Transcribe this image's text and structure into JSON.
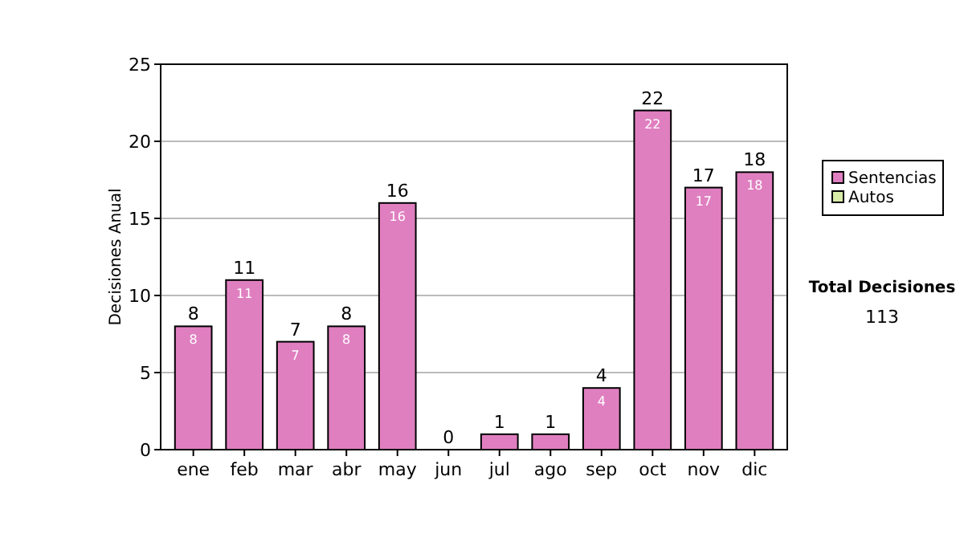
{
  "chart_data": {
    "type": "bar",
    "stacked": true,
    "ylabel": "Decisiones Anual",
    "categories": [
      "ene",
      "feb",
      "mar",
      "abr",
      "may",
      "jun",
      "jul",
      "ago",
      "sep",
      "oct",
      "nov",
      "dic"
    ],
    "series": [
      {
        "name": "Sentencias",
        "color": "#df7fc0",
        "values": [
          8,
          11,
          7,
          8,
          16,
          0,
          1,
          1,
          4,
          22,
          17,
          18
        ],
        "value_labels": [
          "8",
          "11",
          "7",
          "8",
          "16",
          null,
          null,
          null,
          "4",
          "22",
          "17",
          "18"
        ]
      },
      {
        "name": "Autos",
        "color": "#d8eca8",
        "values": [
          0,
          0,
          0,
          0,
          0,
          0,
          0,
          0,
          0,
          0,
          0,
          0
        ]
      }
    ],
    "totals": [
      "8",
      "11",
      "7",
      "8",
      "16",
      "0",
      "1",
      "1",
      "4",
      "22",
      "17",
      "18"
    ],
    "ylim": [
      0,
      25
    ],
    "yticks": [
      0,
      5,
      10,
      15,
      20,
      25
    ],
    "grid": "y",
    "legend": "right",
    "annotations": [
      "Total Decisiones",
      "113"
    ]
  }
}
